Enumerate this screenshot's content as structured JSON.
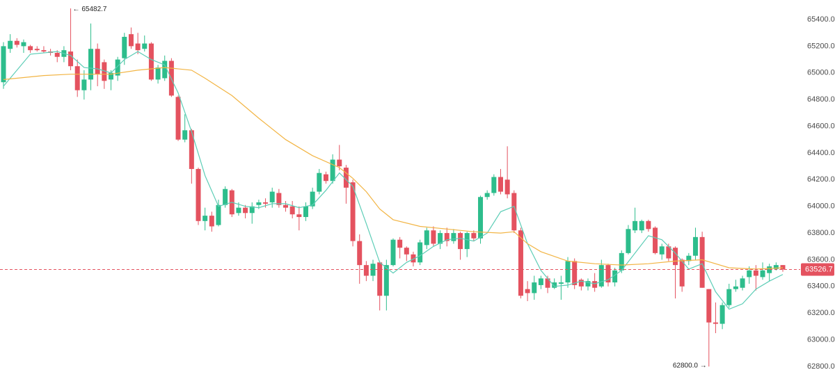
{
  "chart_data": {
    "type": "candlestick",
    "up_color": "#2dbd8c",
    "down_color": "#e4525f",
    "open": [
      64930,
      65180,
      65240,
      65200,
      65200,
      65180,
      65170,
      65160,
      65150,
      65120,
      65160,
      65050,
      64870,
      64950,
      65180,
      65080,
      64950,
      64980,
      65110,
      65290,
      65220,
      65180,
      65220,
      64950,
      64960,
      65090,
      64820,
      64500,
      64570,
      64280,
      63890,
      63930,
      63860,
      64010,
      64120,
      63950,
      63990,
      63950,
      64010,
      64030,
      64030,
      64100,
      64010,
      64000,
      63940,
      63920,
      64000,
      64110,
      64240,
      64190,
      64350,
      64290,
      64180,
      63740,
      63560,
      63480,
      63580,
      63330,
      63560,
      63750,
      63690,
      63640,
      63580,
      63710,
      63820,
      63720,
      63800,
      63740,
      63800,
      63680,
      63800,
      63760,
      64070,
      64100,
      64220,
      64200,
      64100,
      63820,
      63380,
      63350,
      63410,
      63460,
      63390,
      63420,
      63430,
      63590,
      63450,
      63400,
      63440,
      63400,
      63560,
      63430,
      63520,
      63650,
      63820,
      63820,
      63890,
      63840,
      63640,
      63700,
      63690,
      63600,
      63590,
      63630,
      63770,
      63380,
      63130,
      63120,
      63260,
      63380,
      63390,
      63470,
      63520,
      63470,
      63500,
      63530,
      63560
    ],
    "high": [
      65230,
      65290,
      65260,
      65250,
      65210,
      65200,
      65200,
      65180,
      65170,
      65200,
      65482.7,
      65100,
      65020,
      65370,
      65220,
      65100,
      65020,
      65120,
      65300,
      65340,
      65300,
      65280,
      65230,
      65060,
      65130,
      65110,
      64830,
      64690,
      64580,
      64290,
      63990,
      63960,
      64050,
      64150,
      64130,
      64030,
      64010,
      64030,
      64050,
      64060,
      64140,
      64130,
      64040,
      64040,
      64000,
      64030,
      64140,
      64280,
      64260,
      64390,
      64460,
      64310,
      64200,
      63790,
      63590,
      63600,
      63590,
      63600,
      63760,
      63770,
      63700,
      63660,
      63750,
      63840,
      63850,
      63820,
      63840,
      63830,
      63810,
      63810,
      63820,
      64080,
      64120,
      64240,
      64280,
      64450,
      64120,
      63840,
      63440,
      63480,
      63480,
      63480,
      63460,
      63480,
      63620,
      63610,
      63460,
      63460,
      63500,
      63600,
      63570,
      63540,
      63670,
      63860,
      63990,
      63900,
      63900,
      63850,
      63720,
      63720,
      63700,
      63610,
      63650,
      63840,
      63810,
      63380,
      63280,
      63280,
      63420,
      63450,
      63480,
      63550,
      63560,
      63580,
      63570,
      63580,
      63560
    ],
    "low": [
      64880,
      65150,
      65190,
      65150,
      65150,
      65160,
      65150,
      65130,
      65080,
      65080,
      65020,
      64820,
      64800,
      64870,
      64900,
      64880,
      64870,
      64940,
      65060,
      65180,
      65140,
      65160,
      64940,
      64920,
      64940,
      64820,
      64490,
      64480,
      64170,
      63860,
      63820,
      63810,
      63850,
      63990,
      63920,
      63930,
      63910,
      63870,
      63980,
      63990,
      63990,
      63990,
      63960,
      63910,
      63820,
      63890,
      63980,
      64090,
      64170,
      64170,
      64270,
      64020,
      63700,
      63420,
      63440,
      63440,
      63220,
      63220,
      63550,
      63610,
      63590,
      63550,
      63560,
      63680,
      63700,
      63680,
      63700,
      63720,
      63600,
      63620,
      63740,
      63720,
      64050,
      64080,
      64090,
      64060,
      63800,
      63310,
      63290,
      63300,
      63380,
      63350,
      63380,
      63300,
      63390,
      63380,
      63370,
      63370,
      63360,
      63390,
      63400,
      63400,
      63500,
      63640,
      63800,
      63800,
      63810,
      63640,
      63600,
      63590,
      63310,
      63360,
      63560,
      63600,
      63390,
      62800,
      63050,
      63080,
      63240,
      63360,
      63370,
      63420,
      63370,
      63450,
      63440,
      63520,
      63510
    ],
    "close": [
      65200,
      65240,
      65210,
      65230,
      65170,
      65170,
      65160,
      65150,
      65120,
      65170,
      65050,
      64870,
      64950,
      65180,
      64990,
      64940,
      65000,
      65100,
      65270,
      65200,
      65170,
      65220,
      64950,
      65040,
      65090,
      64830,
      64500,
      64570,
      64280,
      63890,
      63930,
      63850,
      64010,
      64130,
      63940,
      63990,
      63950,
      64000,
      64030,
      64020,
      64110,
      64010,
      63990,
      63940,
      63920,
      64000,
      64110,
      64250,
      64190,
      64350,
      64300,
      64140,
      63740,
      63560,
      63480,
      63570,
      63330,
      63560,
      63750,
      63690,
      63640,
      63580,
      63730,
      63820,
      63720,
      63800,
      63740,
      63800,
      63680,
      63800,
      63760,
      64070,
      64100,
      64220,
      64110,
      64090,
      63820,
      63330,
      63350,
      63430,
      63460,
      63390,
      63430,
      63430,
      63590,
      63410,
      63400,
      63440,
      63390,
      63560,
      63430,
      63520,
      63650,
      63830,
      63890,
      63890,
      63830,
      63650,
      63700,
      63610,
      63560,
      63400,
      63630,
      63770,
      63390,
      63130,
      63120,
      63260,
      63380,
      63400,
      63460,
      63520,
      63480,
      63520,
      63550,
      63560,
      63526.7
    ],
    "moving_averages": [
      {
        "color": "#5ccdb6",
        "x": [
          0,
          4,
          8,
          10,
          12,
          14,
          16,
          18,
          20,
          22,
          24,
          26,
          28,
          30,
          32,
          34,
          36,
          38,
          40,
          42,
          44,
          46,
          48,
          50,
          52,
          54,
          56,
          58,
          60,
          62,
          64,
          66,
          68,
          70,
          72,
          74,
          76,
          78,
          80,
          82,
          84,
          86,
          88,
          90,
          92,
          94,
          96,
          98,
          100,
          102,
          104,
          106,
          108,
          110,
          112,
          114,
          116
        ],
        "values": [
          64900,
          65140,
          65160,
          65130,
          65040,
          65030,
          65000,
          65100,
          65160,
          65100,
          65060,
          64850,
          64560,
          64230,
          64000,
          64030,
          64000,
          63990,
          64020,
          64020,
          63990,
          64010,
          64120,
          64250,
          64150,
          63870,
          63580,
          63500,
          63580,
          63630,
          63700,
          63750,
          63760,
          63740,
          63800,
          63960,
          64000,
          63720,
          63520,
          63400,
          63410,
          63440,
          63420,
          63450,
          63520,
          63650,
          63780,
          63750,
          63650,
          63530,
          63570,
          63360,
          63230,
          63270,
          63380,
          63440,
          63490
        ]
      },
      {
        "color": "#f2b443",
        "x": [
          0,
          6,
          10,
          16,
          20,
          24,
          28,
          30,
          34,
          38,
          42,
          46,
          50,
          52,
          54,
          56,
          58,
          62,
          66,
          70,
          74,
          76,
          78,
          80,
          84,
          88,
          92,
          96,
          100,
          104,
          108,
          112,
          116
        ],
        "values": [
          64950,
          64980,
          64990,
          64990,
          65020,
          65040,
          65020,
          64960,
          64830,
          64660,
          64500,
          64380,
          64290,
          64210,
          64110,
          63980,
          63900,
          63850,
          63830,
          63810,
          63800,
          63810,
          63720,
          63660,
          63590,
          63570,
          63560,
          63570,
          63590,
          63600,
          63540,
          63530,
          63540
        ]
      }
    ],
    "ylim": [
      62654,
      65546
    ],
    "yticks": [
      {
        "value": 62800,
        "label": "62800.0"
      },
      {
        "value": 63000,
        "label": "63000.0"
      },
      {
        "value": 63200,
        "label": "63200.0"
      },
      {
        "value": 63400,
        "label": "63400.0"
      },
      {
        "value": 63600,
        "label": "63600.0"
      },
      {
        "value": 63800,
        "label": "63800.0"
      },
      {
        "value": 64000,
        "label": "64000.0"
      },
      {
        "value": 64200,
        "label": "64200.0"
      },
      {
        "value": 64400,
        "label": "64400.0"
      },
      {
        "value": 64600,
        "label": "64600.0"
      },
      {
        "value": 64800,
        "label": "64800.0"
      },
      {
        "value": 65000,
        "label": "65000.0"
      },
      {
        "value": 65200,
        "label": "65200.0"
      },
      {
        "value": 65400,
        "label": "65400.0"
      }
    ],
    "price_line": {
      "value": 63526.7,
      "label": "63526.7",
      "color": "#e4525f"
    },
    "high_label": "← 65482.7",
    "low_label": "62800.0 →"
  }
}
